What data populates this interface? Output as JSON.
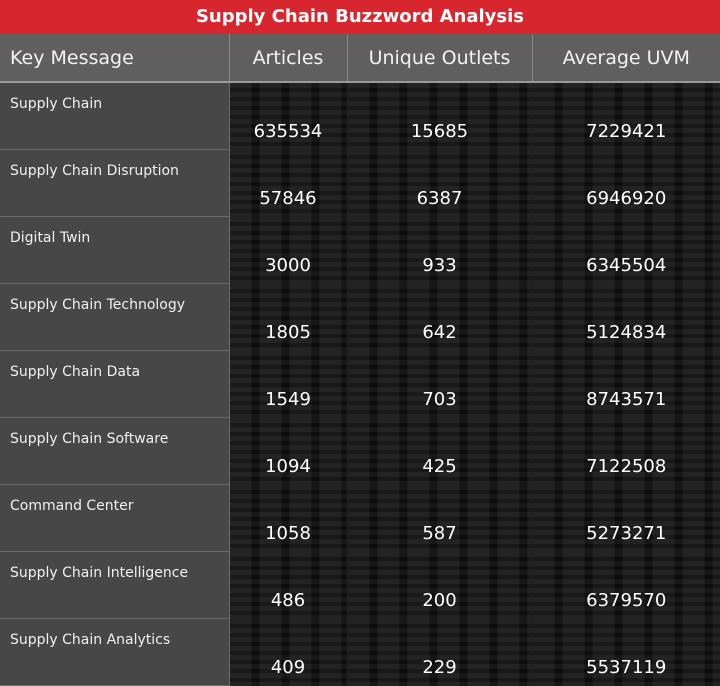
{
  "header": {
    "title": "Supply Chain Buzzword Analysis"
  },
  "chart_data": {
    "type": "table",
    "title": "Supply Chain Buzzword Analysis",
    "columns": [
      "Key Message",
      "Articles",
      "Unique Outlets",
      "Average UVM"
    ],
    "rows": [
      {
        "key": "Supply Chain",
        "articles": "635534",
        "outlets": "15685",
        "uvm": "7229421"
      },
      {
        "key": "Supply Chain Disruption",
        "articles": "57846",
        "outlets": "6387",
        "uvm": "6946920"
      },
      {
        "key": "Digital Twin",
        "articles": "3000",
        "outlets": "933",
        "uvm": "6345504"
      },
      {
        "key": "Supply Chain Technology",
        "articles": "1805",
        "outlets": "642",
        "uvm": "5124834"
      },
      {
        "key": "Supply Chain Data",
        "articles": "1549",
        "outlets": "703",
        "uvm": "8743571"
      },
      {
        "key": "Supply Chain Software",
        "articles": "1094",
        "outlets": "425",
        "uvm": "7122508"
      },
      {
        "key": "Command Center",
        "articles": "1058",
        "outlets": "587",
        "uvm": "5273271"
      },
      {
        "key": "Supply Chain Intelligence",
        "articles": "486",
        "outlets": "200",
        "uvm": "6379570"
      },
      {
        "key": "Supply Chain Analytics",
        "articles": "409",
        "outlets": "229",
        "uvm": "5537119"
      }
    ]
  },
  "colors": {
    "title_bar": "#d8262e",
    "header_bg": "#5f5f5f",
    "key_col_bg": "#474747",
    "body_bg": "#0d0d0d"
  }
}
